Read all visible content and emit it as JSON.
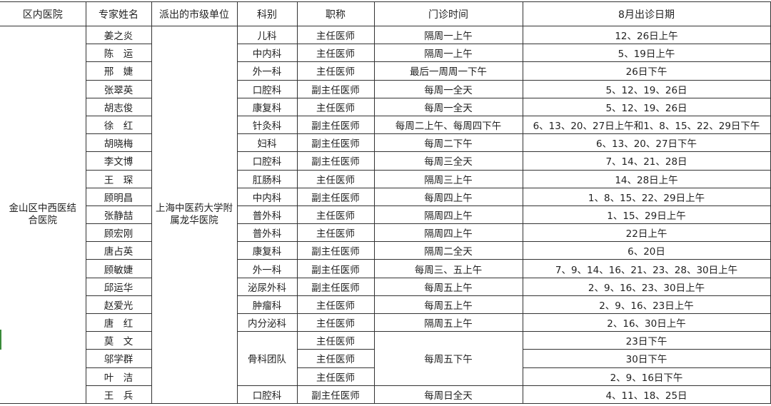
{
  "headers": [
    "区内医院",
    "专家姓名",
    "派出的市级单位",
    "科别",
    "职称",
    "门诊时间",
    "8月出诊日期"
  ],
  "district_hospital": "金山区中西医结合医院",
  "city_unit": "上海中医药大学附属龙华医院",
  "rows": [
    {
      "name": "姜之炎",
      "dept": "儿科",
      "title": "主任医师",
      "clinic_time": "隔周一上午",
      "august_dates": "12、26日上午"
    },
    {
      "name": "陈　运",
      "dept": "中内科",
      "title": "主任医师",
      "clinic_time": "隔周一上午",
      "august_dates": "5、19日上午"
    },
    {
      "name": "邢　婕",
      "dept": "外一科",
      "title": "主任医师",
      "clinic_time": "最后一周周一下午",
      "august_dates": "26日下午"
    },
    {
      "name": "张翠英",
      "dept": "口腔科",
      "title": "副主任医师",
      "clinic_time": "每周一全天",
      "august_dates": "5、12、19、26日"
    },
    {
      "name": "胡志俊",
      "dept": "康复科",
      "title": "主任医师",
      "clinic_time": "每周一全天",
      "august_dates": "5、12、19、26日"
    },
    {
      "name": "徐　红",
      "dept": "针灸科",
      "title": "副主任医师",
      "clinic_time": "每周二上午、每周四下午",
      "august_dates": "6、13、20、27日上午和1、8、15、22、29日下午"
    },
    {
      "name": "胡晓梅",
      "dept": "妇科",
      "title": "副主任医师",
      "clinic_time": "每周二下午",
      "august_dates": "6、13、20、27日下午"
    },
    {
      "name": "李文博",
      "dept": "口腔科",
      "title": "副主任医师",
      "clinic_time": "每周三全天",
      "august_dates": "7、14、21、28日"
    },
    {
      "name": "王　琛",
      "dept": "肛肠科",
      "title": "主任医师",
      "clinic_time": "隔周三上午",
      "august_dates": "14、28日上午"
    },
    {
      "name": "顾明昌",
      "dept": "中内科",
      "title": "副主任医师",
      "clinic_time": "每周四上午",
      "august_dates": "1、8、15、22、29日上午"
    },
    {
      "name": "张静喆",
      "dept": "普外科",
      "title": "主任医师",
      "clinic_time": "隔周四上午",
      "august_dates": "1、15、29日上午"
    },
    {
      "name": "顾宏刚",
      "dept": "普外科",
      "title": "主任医师",
      "clinic_time": "隔周四上午",
      "august_dates": "22日上午"
    },
    {
      "name": "唐占英",
      "dept": "康复科",
      "title": "副主任医师",
      "clinic_time": "隔周二全天",
      "august_dates": "6、20日"
    },
    {
      "name": "顾敏婕",
      "dept": "外一科",
      "title": "副主任医师",
      "clinic_time": "每周三、五上午",
      "august_dates": "7、9、14、16、21、23、28、30日上午"
    },
    {
      "name": "邱运华",
      "dept": "泌尿外科",
      "title": "副主任医师",
      "clinic_time": "每周五上午",
      "august_dates": "2、9、16、23、30日上午"
    },
    {
      "name": "赵爱光",
      "dept": "肿瘤科",
      "title": "主任医师",
      "clinic_time": "每周五上午",
      "august_dates": "2、9、16、23日上午"
    },
    {
      "name": "唐　红",
      "dept": "内分泌科",
      "title": "主任医师",
      "clinic_time": "隔周五上午",
      "august_dates": "2、16、30日上午"
    },
    {
      "name": "莫　文",
      "dept": "骨科团队",
      "title": "主任医师",
      "clinic_time": "每周五下午",
      "august_dates": "23日下午"
    },
    {
      "name": "邬学群",
      "dept": "骨科团队",
      "title": "主任医师",
      "clinic_time": "每周五下午",
      "august_dates": "30日下午"
    },
    {
      "name": "叶　洁",
      "dept": "骨科团队",
      "title": "主任医师",
      "clinic_time": "每周五下午",
      "august_dates": "2、9、16日下午"
    },
    {
      "name": "王　兵",
      "dept": "口腔科",
      "title": "副主任医师",
      "clinic_time": "每周日全天",
      "august_dates": "4、11、18、25日"
    }
  ]
}
